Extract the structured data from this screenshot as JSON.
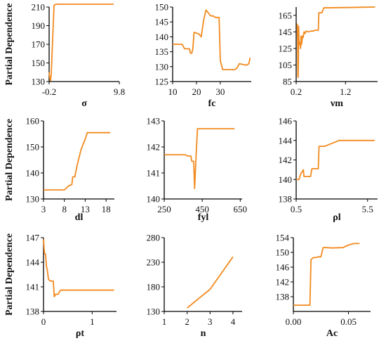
{
  "figure": {
    "ylabel": "Partial Dependence",
    "line_color": "#f28a1e"
  },
  "chart_data": [
    {
      "type": "line",
      "xlabel": "σ",
      "ylabel": "Partial Dependence",
      "xlim": [
        -0.2,
        9.8
      ],
      "ylim": [
        130,
        210
      ],
      "xticks": [
        {
          "v": -0.2,
          "t": "-0.2"
        },
        {
          "v": 9.8,
          "t": "9.8"
        }
      ],
      "yticks": [
        {
          "v": 130,
          "t": "130"
        },
        {
          "v": 150,
          "t": "150"
        },
        {
          "v": 170,
          "t": "170"
        },
        {
          "v": 190,
          "t": "190"
        },
        {
          "v": 210,
          "t": "210"
        }
      ],
      "x": [
        -0.2,
        -0.1,
        0.0,
        0.1,
        0.3,
        0.5,
        0.8,
        5.0,
        9.0
      ],
      "y": [
        140,
        133,
        131,
        138,
        175,
        212,
        213,
        213,
        213
      ]
    },
    {
      "type": "line",
      "xlabel": "fc",
      "ylabel": "",
      "xlim": [
        10,
        43
      ],
      "ylim": [
        125,
        150
      ],
      "xticks": [
        {
          "v": 10,
          "t": "10"
        },
        {
          "v": 20,
          "t": "20"
        },
        {
          "v": 30,
          "t": "30"
        }
      ],
      "yticks": [
        {
          "v": 125,
          "t": "125"
        },
        {
          "v": 130,
          "t": "130"
        },
        {
          "v": 135,
          "t": "135"
        },
        {
          "v": 140,
          "t": "140"
        },
        {
          "v": 145,
          "t": "145"
        },
        {
          "v": 150,
          "t": "150"
        }
      ],
      "x": [
        10,
        14,
        15,
        16,
        17,
        17.5,
        18,
        18.5,
        19,
        21,
        22,
        23,
        24,
        25,
        26,
        27,
        28,
        29.5,
        30,
        31,
        32,
        33,
        36,
        37,
        38,
        41,
        42,
        42.5
      ],
      "y": [
        137.5,
        137.5,
        136,
        136,
        136,
        134.5,
        134.5,
        136,
        141.5,
        141,
        140,
        145.5,
        149,
        148,
        147,
        147,
        146.5,
        146.5,
        132,
        129,
        129,
        129,
        129,
        129.5,
        131,
        130.5,
        131,
        133
      ]
    },
    {
      "type": "line",
      "xlabel": "νm",
      "ylabel": "",
      "xlim": [
        0.2,
        1.85
      ],
      "ylim": [
        85,
        175
      ],
      "xticks": [
        {
          "v": 0.2,
          "t": "0.2"
        },
        {
          "v": 1.2,
          "t": "1.2"
        }
      ],
      "yticks": [
        {
          "v": 85,
          "t": "85"
        },
        {
          "v": 105,
          "t": "105"
        },
        {
          "v": 125,
          "t": "125"
        },
        {
          "v": 145,
          "t": "145"
        },
        {
          "v": 165,
          "t": "165"
        }
      ],
      "x": [
        0.22,
        0.23,
        0.235,
        0.24,
        0.245,
        0.25,
        0.26,
        0.27,
        0.28,
        0.29,
        0.3,
        0.31,
        0.32,
        0.33,
        0.34,
        0.36,
        0.38,
        0.4,
        0.45,
        0.5,
        0.55,
        0.58,
        0.6,
        0.65,
        0.66,
        0.72,
        0.76,
        1.8
      ],
      "y": [
        155,
        135,
        92,
        90,
        110,
        152,
        130,
        132,
        130,
        125,
        140,
        130,
        135,
        140,
        138,
        145,
        143,
        146,
        145,
        146,
        146,
        147,
        147,
        147,
        168,
        168,
        174,
        175
      ]
    },
    {
      "type": "line",
      "xlabel": "dl",
      "ylabel": "Partial Dependence",
      "xlim": [
        3,
        20
      ],
      "ylim": [
        130,
        160
      ],
      "xticks": [
        {
          "v": 3,
          "t": "3"
        },
        {
          "v": 8,
          "t": "8"
        },
        {
          "v": 13,
          "t": "13"
        },
        {
          "v": 18,
          "t": "18"
        }
      ],
      "yticks": [
        {
          "v": 130,
          "t": "130"
        },
        {
          "v": 140,
          "t": "140"
        },
        {
          "v": 150,
          "t": "150"
        },
        {
          "v": 160,
          "t": "160"
        }
      ],
      "x": [
        3,
        6,
        8,
        9,
        9.8,
        10,
        10.5,
        11,
        12,
        12.5,
        13,
        13.5,
        19
      ],
      "y": [
        133.5,
        133.5,
        133.5,
        135,
        135.5,
        138.5,
        138.5,
        142.5,
        149,
        151,
        153,
        155.5,
        155.5
      ]
    },
    {
      "type": "line",
      "xlabel": "fyl",
      "ylabel": "",
      "xlim": [
        250,
        660
      ],
      "ylim": [
        140,
        143
      ],
      "xticks": [
        {
          "v": 250,
          "t": "250"
        },
        {
          "v": 450,
          "t": "450"
        },
        {
          "v": 650,
          "t": "650"
        }
      ],
      "yticks": [
        {
          "v": 140,
          "t": "140"
        },
        {
          "v": 141,
          "t": "141"
        },
        {
          "v": 142,
          "t": "142"
        },
        {
          "v": 143,
          "t": "143"
        }
      ],
      "x": [
        250,
        300,
        360,
        375,
        390,
        395,
        400,
        405,
        410,
        420,
        425,
        440,
        620
      ],
      "y": [
        141.7,
        141.7,
        141.7,
        141.65,
        141.65,
        141.45,
        141.45,
        141.45,
        140.4,
        142.0,
        142.7,
        142.7,
        142.7
      ]
    },
    {
      "type": "line",
      "xlabel": "ρl",
      "ylabel": "",
      "xlim": [
        0.5,
        6.2
      ],
      "ylim": [
        138,
        146
      ],
      "xticks": [
        {
          "v": 0.5,
          "t": "0.5"
        },
        {
          "v": 5.5,
          "t": "5.5"
        }
      ],
      "yticks": [
        {
          "v": 138,
          "t": "138"
        },
        {
          "v": 140,
          "t": "140"
        },
        {
          "v": 142,
          "t": "142"
        },
        {
          "v": 144,
          "t": "144"
        },
        {
          "v": 146,
          "t": "146"
        }
      ],
      "x": [
        0.5,
        0.7,
        0.8,
        1.0,
        1.05,
        1.1,
        1.3,
        1.5,
        1.6,
        1.75,
        2.05,
        2.1,
        2.5,
        3.5,
        6.0
      ],
      "y": [
        140,
        140,
        140.5,
        141,
        140.3,
        140.3,
        140.3,
        140.3,
        141.1,
        141.1,
        141.1,
        143.4,
        143.4,
        144,
        144
      ]
    },
    {
      "type": "line",
      "xlabel": "ρt",
      "ylabel": "Partial Dependence",
      "xlim": [
        0,
        1.5
      ],
      "ylim": [
        138,
        147
      ],
      "xticks": [
        {
          "v": 0,
          "t": "0"
        },
        {
          "v": 1,
          "t": "1"
        }
      ],
      "yticks": [
        {
          "v": 138,
          "t": "138"
        },
        {
          "v": 141,
          "t": "141"
        },
        {
          "v": 144,
          "t": "144"
        },
        {
          "v": 147,
          "t": "147"
        }
      ],
      "x": [
        0.0,
        0.02,
        0.04,
        0.06,
        0.08,
        0.1,
        0.12,
        0.15,
        0.2,
        0.22,
        0.25,
        0.28,
        0.3,
        0.35,
        0.4,
        1.0,
        1.45
      ],
      "y": [
        146.8,
        145,
        145,
        143.5,
        143,
        142,
        141.8,
        141.7,
        141.7,
        139.8,
        140.1,
        140.1,
        140.1,
        140.6,
        140.6,
        140.6,
        140.6
      ]
    },
    {
      "type": "line",
      "xlabel": "n",
      "ylabel": "",
      "xlim": [
        1,
        4.4
      ],
      "ylim": [
        130,
        280
      ],
      "xticks": [
        {
          "v": 1,
          "t": "1"
        },
        {
          "v": 2,
          "t": "2"
        },
        {
          "v": 3,
          "t": "3"
        },
        {
          "v": 4,
          "t": "4"
        }
      ],
      "yticks": [
        {
          "v": 130,
          "t": "130"
        },
        {
          "v": 180,
          "t": "180"
        },
        {
          "v": 230,
          "t": "230"
        },
        {
          "v": 280,
          "t": "280"
        }
      ],
      "x": [
        2,
        3,
        4
      ],
      "y": [
        137,
        175,
        241
      ]
    },
    {
      "type": "line",
      "xlabel": "Ac",
      "ylabel": "",
      "xlim": [
        0,
        0.07
      ],
      "ylim": [
        134,
        154
      ],
      "xticks": [
        {
          "v": 0,
          "t": "0.00"
        },
        {
          "v": 0.05,
          "t": "0.05"
        }
      ],
      "yticks": [
        {
          "v": 138,
          "t": "138"
        },
        {
          "v": 142,
          "t": "142"
        },
        {
          "v": 146,
          "t": "146"
        },
        {
          "v": 150,
          "t": "150"
        },
        {
          "v": 154,
          "t": "154"
        }
      ],
      "x": [
        0.0,
        0.015,
        0.016,
        0.018,
        0.02,
        0.023,
        0.025,
        0.027,
        0.03,
        0.035,
        0.045,
        0.05,
        0.055,
        0.06
      ],
      "y": [
        135.7,
        135.7,
        148,
        148.6,
        148.6,
        148.8,
        148.8,
        151.3,
        151.3,
        151.2,
        151.3,
        152,
        152.4,
        152.4
      ]
    }
  ]
}
